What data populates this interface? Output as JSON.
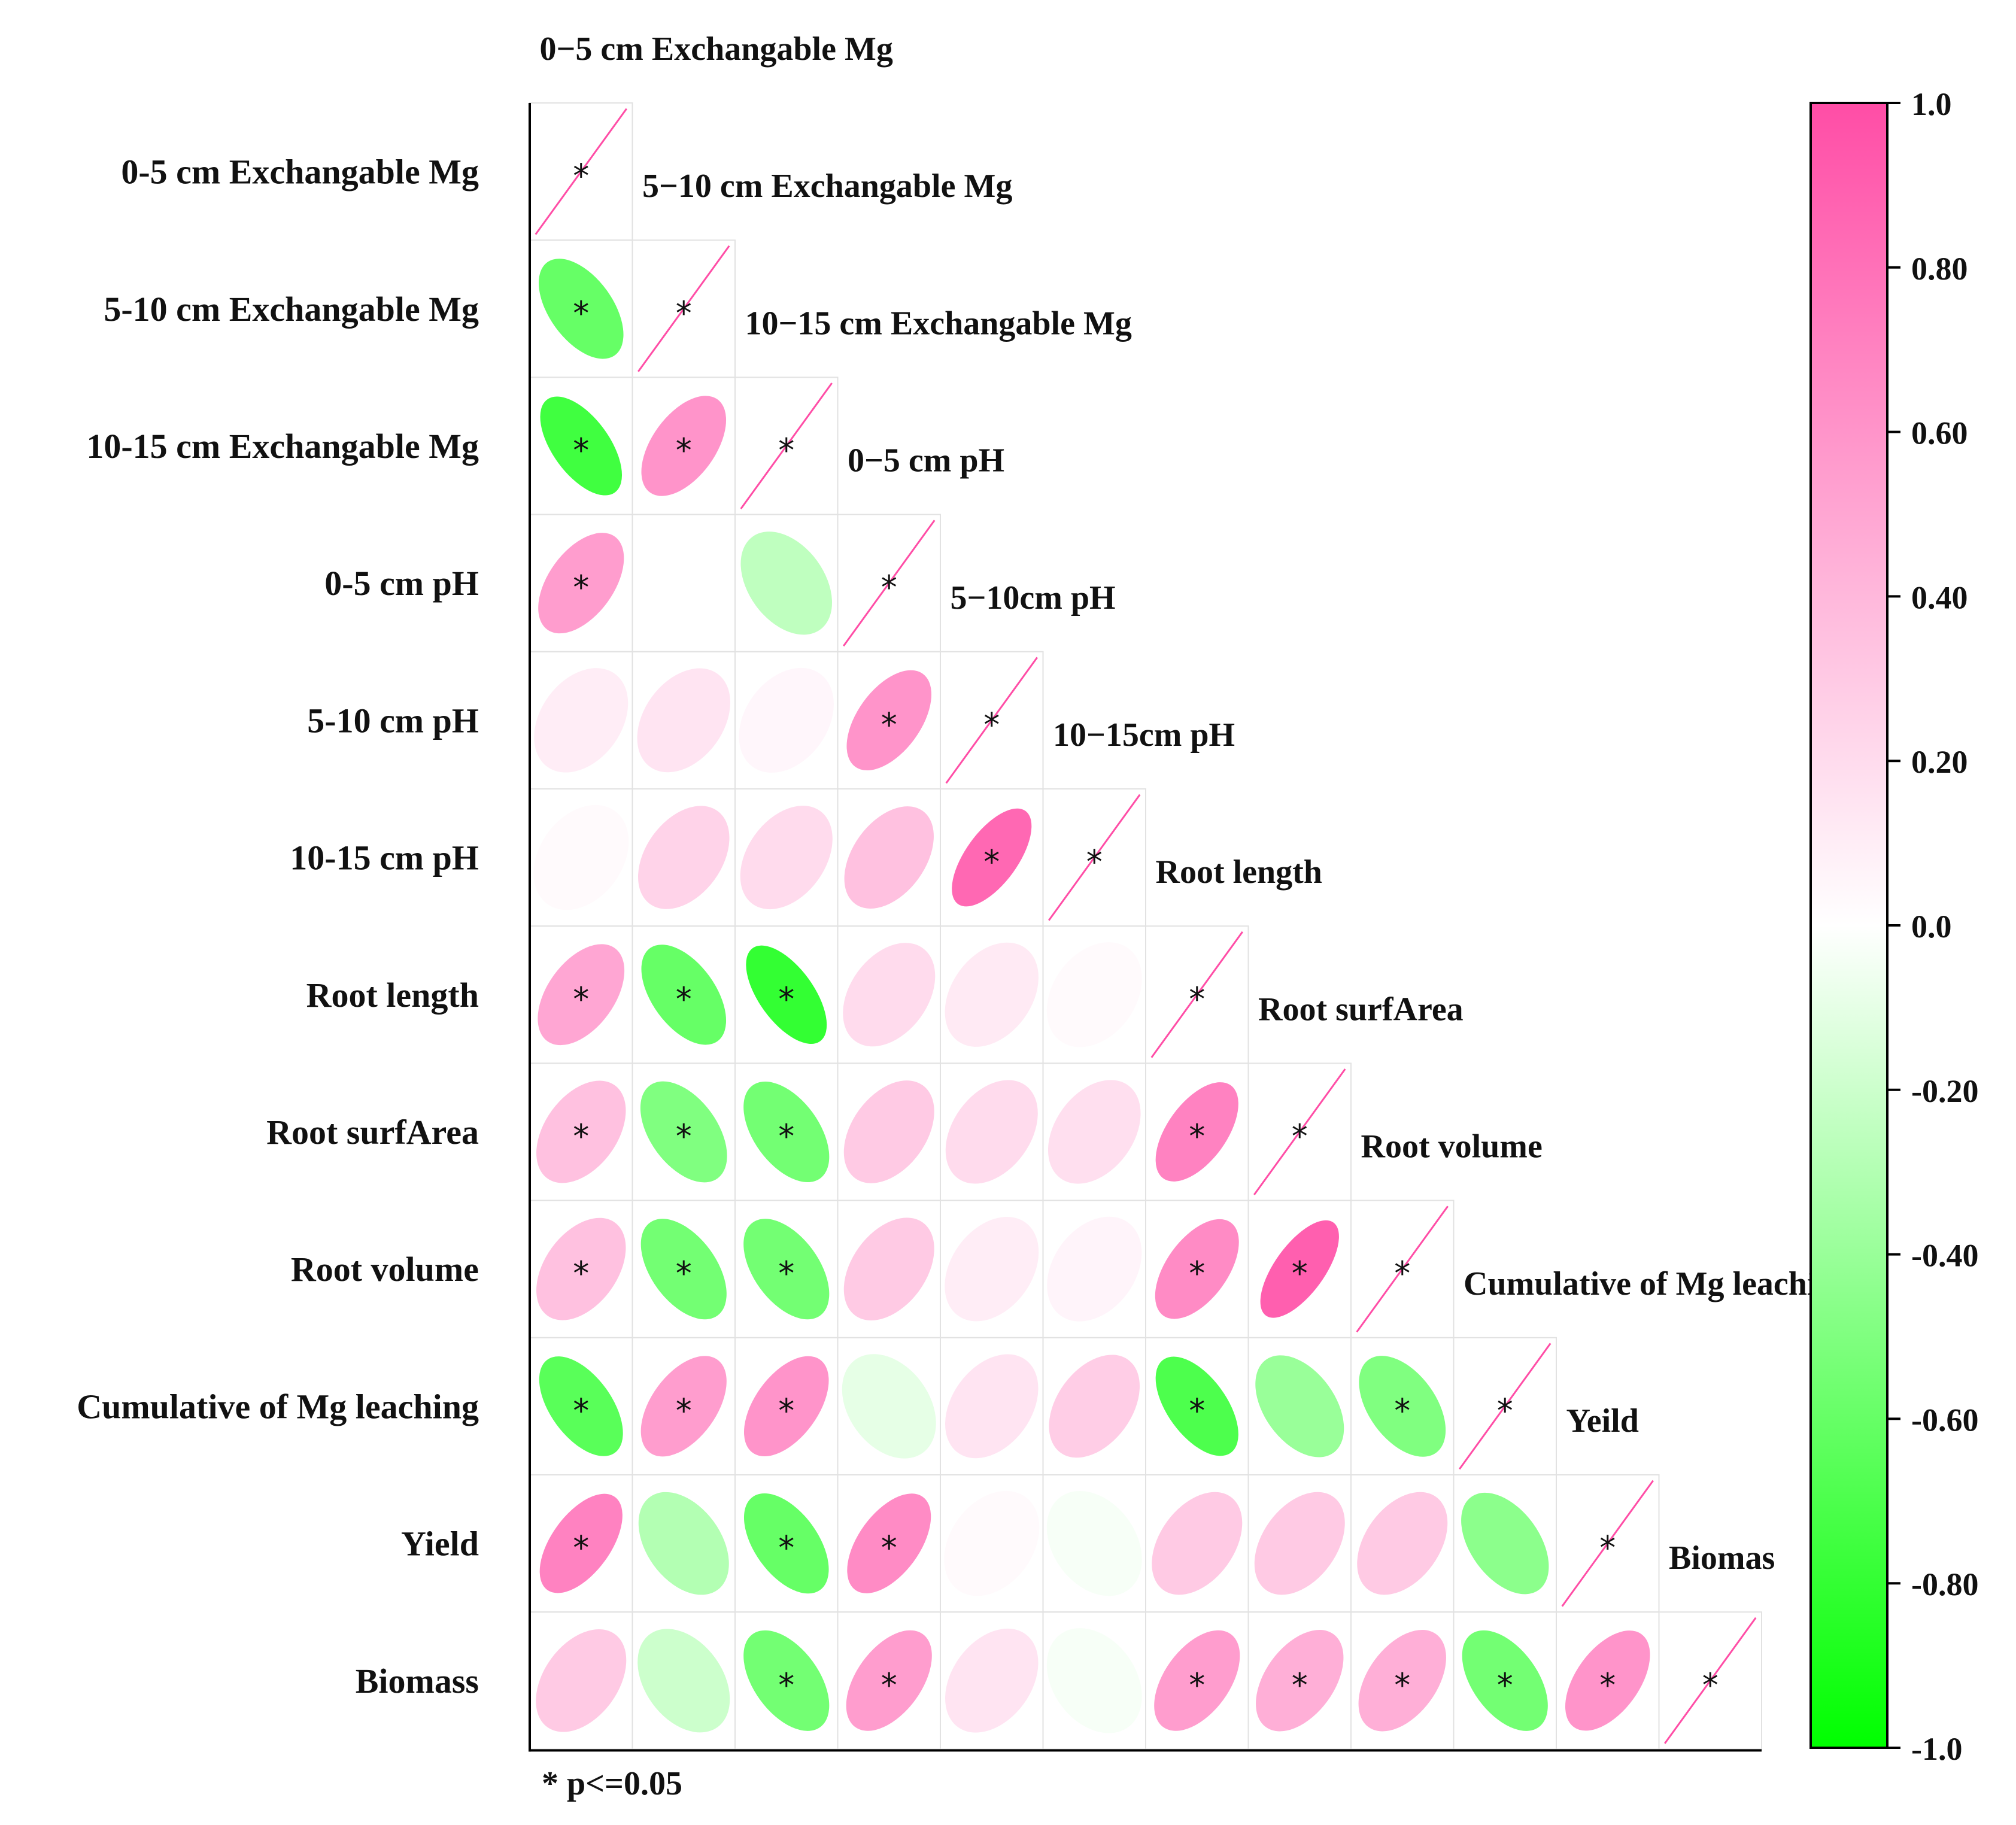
{
  "chart_data": {
    "type": "heatmap",
    "style": "ellipse correlation matrix (lower triangle)",
    "row_labels": [
      "0-5 cm Exchangable Mg",
      "5-10 cm Exchangable Mg",
      "10-15 cm Exchangable Mg",
      "0-5 cm pH",
      "5-10 cm pH",
      "10-15 cm pH",
      "Root length",
      "Root surfArea",
      "Root volume",
      "Cumulative of Mg leaching",
      "Yield",
      "Biomass"
    ],
    "column_labels": [
      "0−5 cm Exchangable Mg",
      "5−10 cm Exchangable Mg",
      "10−15 cm Exchangable Mg",
      "0−5 cm pH",
      "5−10cm pH",
      "10−15cm pH",
      "Root length",
      "Root surfArea",
      "Root volume",
      "Cumulative of Mg leaching",
      "Yeild",
      "Biomas"
    ],
    "correlations": [
      [
        1.0
      ],
      [
        -0.6,
        1.0
      ],
      [
        -0.75,
        0.6,
        1.0
      ],
      [
        0.55,
        0.0,
        -0.25,
        1.0
      ],
      [
        0.1,
        0.15,
        0.05,
        0.6,
        1.0
      ],
      [
        0.03,
        0.25,
        0.2,
        0.35,
        0.85,
        1.0
      ],
      [
        0.5,
        -0.6,
        -0.8,
        0.2,
        0.12,
        0.03,
        1.0
      ],
      [
        0.35,
        -0.5,
        -0.55,
        0.3,
        0.2,
        0.18,
        0.7,
        1.0
      ],
      [
        0.35,
        -0.55,
        -0.55,
        0.3,
        0.1,
        0.06,
        0.65,
        0.9,
        1.0
      ],
      [
        -0.65,
        0.55,
        0.6,
        -0.1,
        0.15,
        0.28,
        -0.7,
        -0.4,
        -0.5,
        1.0
      ],
      [
        0.7,
        -0.3,
        -0.6,
        0.65,
        0.03,
        -0.03,
        0.3,
        0.3,
        0.3,
        -0.45,
        1.0
      ],
      [
        0.3,
        -0.2,
        -0.55,
        0.55,
        0.15,
        -0.03,
        0.55,
        0.45,
        0.45,
        -0.55,
        0.6,
        1.0
      ]
    ],
    "significant": [
      [
        true
      ],
      [
        true,
        true
      ],
      [
        true,
        true,
        true
      ],
      [
        true,
        false,
        false,
        true
      ],
      [
        false,
        false,
        false,
        true,
        true
      ],
      [
        false,
        false,
        false,
        false,
        true,
        true
      ],
      [
        true,
        true,
        true,
        false,
        false,
        false,
        true
      ],
      [
        true,
        true,
        true,
        false,
        false,
        false,
        true,
        true
      ],
      [
        true,
        true,
        true,
        false,
        false,
        false,
        true,
        true,
        true
      ],
      [
        true,
        true,
        true,
        false,
        false,
        false,
        true,
        false,
        true,
        true
      ],
      [
        true,
        false,
        true,
        true,
        false,
        false,
        false,
        false,
        false,
        false,
        true
      ],
      [
        false,
        false,
        true,
        true,
        false,
        false,
        true,
        true,
        true,
        true,
        true,
        true
      ]
    ],
    "significance_symbol": "*",
    "significance_note": "* p<=0.05",
    "colorbar": {
      "min": -1.0,
      "max": 1.0,
      "ticks": [
        "1.0",
        "0.80",
        "0.60",
        "0.40",
        "0.20",
        "0.0",
        "-0.20",
        "-0.40",
        "-0.60",
        "-0.80",
        "-1.0"
      ],
      "tick_values": [
        1.0,
        0.8,
        0.6,
        0.4,
        0.2,
        0.0,
        -0.2,
        -0.4,
        -0.6,
        -0.8,
        -1.0
      ],
      "colors": {
        "negative": "#00ff00",
        "zero": "#ffffff",
        "positive": "#ff4da6"
      }
    }
  }
}
